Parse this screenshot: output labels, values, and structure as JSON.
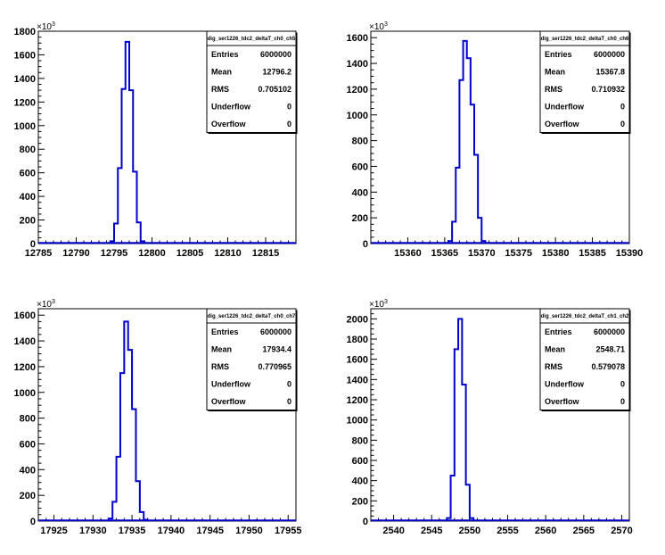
{
  "chart_data": [
    {
      "type": "bar",
      "stat_title": "dig_ser1226_tdc2_deltaT_ch0_ch5",
      "stats": [
        {
          "label": "Entries",
          "value": "6000000"
        },
        {
          "label": "Mean",
          "value": "12796.2"
        },
        {
          "label": "RMS",
          "value": "0.705102"
        },
        {
          "label": "Underflow",
          "value": "0"
        },
        {
          "label": "Overflow",
          "value": "0"
        }
      ],
      "multiplier_base": "×10",
      "multiplier_exp": "3",
      "xlim": [
        12785,
        12819
      ],
      "ylim": [
        0,
        1800
      ],
      "xticks": [
        "12785",
        "12790",
        "12795",
        "12800",
        "12805",
        "12810",
        "12815"
      ],
      "xtick_values": [
        12785,
        12790,
        12795,
        12800,
        12805,
        12810,
        12815
      ],
      "yticks": [
        "0",
        "200",
        "400",
        "600",
        "800",
        "1000",
        "1200",
        "1400",
        "1600",
        "1800"
      ],
      "ytick_values": [
        0,
        200,
        400,
        600,
        800,
        1000,
        1200,
        1400,
        1600,
        1800
      ],
      "bin_width": 0.5,
      "bins": [
        {
          "x": 12794.5,
          "y": 20
        },
        {
          "x": 12795.0,
          "y": 170
        },
        {
          "x": 12795.5,
          "y": 640
        },
        {
          "x": 12796.0,
          "y": 1310
        },
        {
          "x": 12796.5,
          "y": 1710
        },
        {
          "x": 12797.0,
          "y": 1300
        },
        {
          "x": 12797.5,
          "y": 610
        },
        {
          "x": 12798.0,
          "y": 180
        },
        {
          "x": 12798.5,
          "y": 20
        }
      ],
      "color": "#0000cc"
    },
    {
      "type": "bar",
      "stat_title": "dig_ser1226_tdc2_deltaT_ch0_ch6",
      "stats": [
        {
          "label": "Entries",
          "value": "6000000"
        },
        {
          "label": "Mean",
          "value": "15367.8"
        },
        {
          "label": "RMS",
          "value": "0.710932"
        },
        {
          "label": "Underflow",
          "value": "0"
        },
        {
          "label": "Overflow",
          "value": "0"
        }
      ],
      "multiplier_base": "×10",
      "multiplier_exp": "3",
      "xlim": [
        15355,
        15390
      ],
      "ylim": [
        0,
        1650
      ],
      "xticks": [
        "15360",
        "15365",
        "15370",
        "15375",
        "15380",
        "15385",
        "15390"
      ],
      "xtick_values": [
        15360,
        15365,
        15370,
        15375,
        15380,
        15385,
        15390
      ],
      "yticks": [
        "0",
        "200",
        "400",
        "600",
        "800",
        "1000",
        "1200",
        "1400",
        "1600"
      ],
      "ytick_values": [
        0,
        200,
        400,
        600,
        800,
        1000,
        1200,
        1400,
        1600
      ],
      "bin_width": 0.5,
      "bins": [
        {
          "x": 15365.5,
          "y": 20
        },
        {
          "x": 15366.0,
          "y": 170
        },
        {
          "x": 15366.5,
          "y": 590
        },
        {
          "x": 15367.0,
          "y": 1270
        },
        {
          "x": 15367.5,
          "y": 1575
        },
        {
          "x": 15368.0,
          "y": 1440
        },
        {
          "x": 15368.5,
          "y": 1080
        },
        {
          "x": 15369.0,
          "y": 690
        },
        {
          "x": 15369.5,
          "y": 200
        },
        {
          "x": 15370.0,
          "y": 20
        }
      ],
      "color": "#0000cc"
    },
    {
      "type": "bar",
      "stat_title": "dig_ser1226_tdc2_deltaT_ch0_ch7",
      "stats": [
        {
          "label": "Entries",
          "value": "6000000"
        },
        {
          "label": "Mean",
          "value": "17934.4"
        },
        {
          "label": "RMS",
          "value": "0.770965"
        },
        {
          "label": "Underflow",
          "value": "0"
        },
        {
          "label": "Overflow",
          "value": "0"
        }
      ],
      "multiplier_base": "×10",
      "multiplier_exp": "3",
      "xlim": [
        17923,
        17956
      ],
      "ylim": [
        0,
        1650
      ],
      "xticks": [
        "17925",
        "17930",
        "17935",
        "17940",
        "17945",
        "17950",
        "17955"
      ],
      "xtick_values": [
        17925,
        17930,
        17935,
        17940,
        17945,
        17950,
        17955
      ],
      "yticks": [
        "0",
        "200",
        "400",
        "600",
        "800",
        "1000",
        "1200",
        "1400",
        "1600"
      ],
      "ytick_values": [
        0,
        200,
        400,
        600,
        800,
        1000,
        1200,
        1400,
        1600
      ],
      "bin_width": 0.5,
      "bins": [
        {
          "x": 17932.0,
          "y": 20
        },
        {
          "x": 17932.5,
          "y": 150
        },
        {
          "x": 17933.0,
          "y": 500
        },
        {
          "x": 17933.5,
          "y": 1150
        },
        {
          "x": 17934.0,
          "y": 1550
        },
        {
          "x": 17934.5,
          "y": 1330
        },
        {
          "x": 17935.0,
          "y": 870
        },
        {
          "x": 17935.5,
          "y": 310
        },
        {
          "x": 17936.0,
          "y": 70
        },
        {
          "x": 17936.5,
          "y": 10
        }
      ],
      "color": "#0000cc"
    },
    {
      "type": "bar",
      "stat_title": "dig_ser1226_tdc2_deltaT_ch1_ch2",
      "stats": [
        {
          "label": "Entries",
          "value": "6000000"
        },
        {
          "label": "Mean",
          "value": "2548.71"
        },
        {
          "label": "RMS",
          "value": "0.579078"
        },
        {
          "label": "Underflow",
          "value": "0"
        },
        {
          "label": "Overflow",
          "value": "0"
        }
      ],
      "multiplier_base": "×10",
      "multiplier_exp": "3",
      "xlim": [
        2537,
        2571
      ],
      "ylim": [
        0,
        2100
      ],
      "xticks": [
        "2540",
        "2545",
        "2550",
        "2555",
        "2560",
        "2565",
        "2570"
      ],
      "xtick_values": [
        2540,
        2545,
        2550,
        2555,
        2560,
        2565,
        2570
      ],
      "yticks": [
        "0",
        "200",
        "400",
        "600",
        "800",
        "1000",
        "1200",
        "1400",
        "1600",
        "1800",
        "2000"
      ],
      "ytick_values": [
        0,
        200,
        400,
        600,
        800,
        1000,
        1200,
        1400,
        1600,
        1800,
        2000
      ],
      "bin_width": 0.5,
      "bins": [
        {
          "x": 2547.0,
          "y": 30
        },
        {
          "x": 2547.5,
          "y": 450
        },
        {
          "x": 2548.0,
          "y": 1700
        },
        {
          "x": 2548.5,
          "y": 2000
        },
        {
          "x": 2549.0,
          "y": 1350
        },
        {
          "x": 2549.5,
          "y": 360
        },
        {
          "x": 2550.0,
          "y": 30
        }
      ],
      "color": "#0000cc"
    }
  ]
}
